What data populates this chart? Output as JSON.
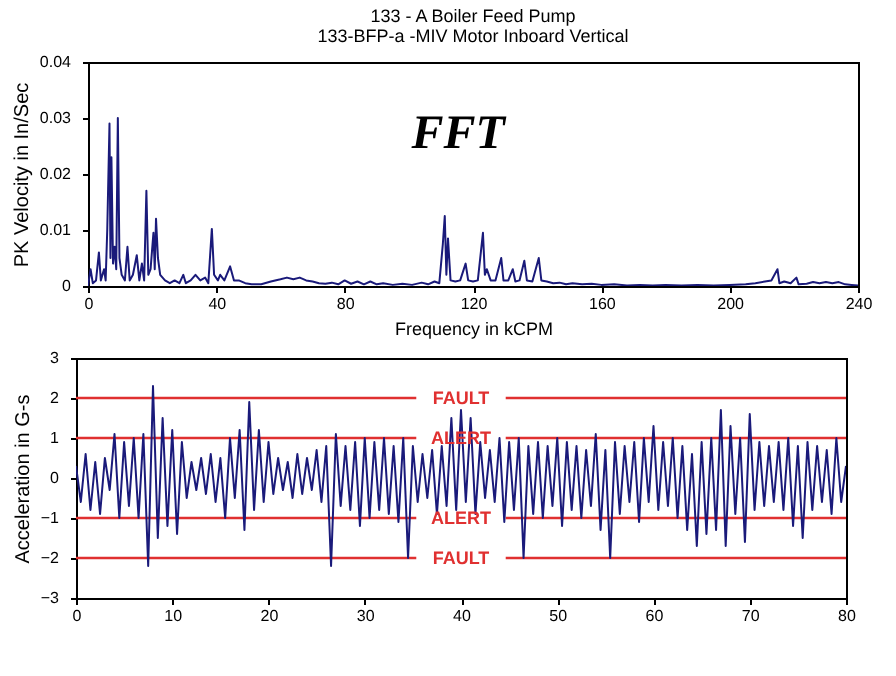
{
  "chart_data": [
    {
      "type": "line",
      "title": "133  - A Boiler Feed Pump",
      "subtitle": "133-BFP-a -MIV   Motor Inboard Vertical",
      "xlabel": "Frequency in kCPM",
      "ylabel": "PK Velocity in In/Sec",
      "annotations": [
        "FFT"
      ],
      "xlim": [
        0,
        240
      ],
      "xticks": [
        0,
        40,
        80,
        120,
        160,
        200,
        240
      ],
      "ylim": [
        0,
        0.04
      ],
      "yticks": [
        0,
        0.01,
        0.02,
        0.03,
        0.04
      ],
      "series": [
        {
          "color": "#1a1a7a",
          "x": [
            0,
            0.8,
            1.5,
            2.5,
            3.4,
            4,
            5,
            5.5,
            6,
            6.7,
            7,
            7.3,
            7.8,
            8.3,
            8.8,
            9.3,
            9.8,
            10.5,
            11.5,
            12.3,
            13,
            14,
            15.2,
            16,
            16.8,
            17.5,
            18.2,
            18.8,
            19.5,
            20.4,
            20.8,
            21.2,
            21.8,
            22.5,
            24,
            25.5,
            27,
            28.5,
            29.7,
            30.5,
            32,
            33.5,
            35,
            36.5,
            37.5,
            38.6,
            39.3,
            40.5,
            41.2,
            42.5,
            44.3,
            45.5,
            47,
            49,
            51,
            54,
            57,
            60,
            62,
            64,
            66,
            68,
            70,
            72,
            74,
            76,
            78,
            80,
            82,
            84,
            86,
            88,
            90,
            92,
            95,
            98,
            101,
            104,
            106,
            108,
            109.5,
            110.6,
            111.2,
            111.7,
            112.2,
            113,
            114.5,
            116,
            117.7,
            118.5,
            120,
            121.5,
            123.1,
            123.7,
            124.3,
            125.5,
            127,
            128.8,
            129.5,
            131,
            132.4,
            133.2,
            134.5,
            136,
            136.8,
            138.5,
            140.5,
            141.3,
            143,
            145,
            147,
            149,
            151,
            154,
            157,
            160,
            164,
            168,
            172,
            176,
            180,
            185,
            190,
            195,
            200,
            205,
            208,
            211,
            213,
            214.9,
            215.5,
            217,
            219,
            220.8,
            221.5,
            224,
            226,
            228,
            230,
            232,
            234,
            236,
            238,
            240
          ],
          "values": [
            0,
            0.003,
            0.0005,
            0.001,
            0.006,
            0.001,
            0.003,
            0.001,
            0.01,
            0.029,
            0.005,
            0.023,
            0.004,
            0.007,
            0.003,
            0.03,
            0.005,
            0.002,
            0.001,
            0.007,
            0.001,
            0.002,
            0.0055,
            0.001,
            0.004,
            0.001,
            0.017,
            0.002,
            0.003,
            0.0095,
            0.003,
            0.012,
            0.005,
            0.002,
            0.001,
            0.0005,
            0.001,
            0.0005,
            0.002,
            0.0005,
            0.001,
            0.002,
            0.001,
            0.0015,
            0.0005,
            0.0102,
            0.002,
            0.001,
            0.002,
            0.001,
            0.0035,
            0.001,
            0.001,
            0.0005,
            0.0003,
            0.0003,
            0.0008,
            0.0012,
            0.0015,
            0.0012,
            0.0015,
            0.001,
            0.0008,
            0.0005,
            0.0004,
            0.0006,
            0.0003,
            0.001,
            0.0004,
            0.0008,
            0.0003,
            0.0008,
            0.0003,
            0.0005,
            0.0002,
            0.0004,
            0.0002,
            0.0006,
            0.0003,
            0.0008,
            0.0005,
            0.0075,
            0.0125,
            0.002,
            0.0085,
            0.001,
            0.0008,
            0.001,
            0.004,
            0.001,
            0.0008,
            0.001,
            0.0095,
            0.002,
            0.003,
            0.001,
            0.001,
            0.005,
            0.001,
            0.001,
            0.003,
            0.0008,
            0.001,
            0.0045,
            0.001,
            0.0008,
            0.005,
            0.001,
            0.0008,
            0.0005,
            0.0006,
            0.0003,
            0.0005,
            0.0003,
            0.0004,
            0.0002,
            0.0003,
            0.0001,
            0.0002,
            0.0001,
            0.0002,
            0.0001,
            0.0002,
            0.0001,
            0.0002,
            0.0003,
            0.0005,
            0.0008,
            0.001,
            0.003,
            0.0005,
            0.0008,
            0.0005,
            0.0015,
            0.0003,
            0.0004,
            0.0007,
            0.0005,
            0.0007,
            0.0005,
            0.0007,
            0.0003,
            0.0002,
            0.0001
          ]
        }
      ]
    },
    {
      "type": "line",
      "ylabel": "Acceleration in G-s",
      "xlim": [
        0,
        80
      ],
      "xticks": [
        0,
        10,
        20,
        30,
        40,
        50,
        60,
        70,
        80
      ],
      "ylim": [
        -3,
        3
      ],
      "yticks": [
        -3,
        -2,
        -1,
        0,
        1,
        2,
        3
      ],
      "ref_lines": [
        {
          "axis": "y",
          "value": 2,
          "label": "FAULT",
          "color": "#e03030"
        },
        {
          "axis": "y",
          "value": 1,
          "label": "ALERT",
          "color": "#e03030"
        },
        {
          "axis": "y",
          "value": -1,
          "label": "ALERT",
          "color": "#e03030"
        },
        {
          "axis": "y",
          "value": -2,
          "label": "FAULT",
          "color": "#e03030"
        }
      ],
      "series": [
        {
          "color": "#1a1a7a",
          "x": [
            0,
            0.5,
            1,
            1.5,
            2,
            2.5,
            3,
            3.5,
            4,
            4.5,
            5,
            5.5,
            6,
            6.5,
            7,
            7.5,
            8,
            8.5,
            9,
            9.5,
            10,
            10.5,
            11,
            11.5,
            12,
            12.5,
            13,
            13.5,
            14,
            14.5,
            15,
            15.5,
            16,
            16.5,
            17,
            17.5,
            18,
            18.5,
            19,
            19.5,
            20,
            20.5,
            21,
            21.5,
            22,
            22.5,
            23,
            23.5,
            24,
            24.5,
            25,
            25.5,
            26,
            26.5,
            27,
            27.5,
            28,
            28.5,
            29,
            29.5,
            30,
            30.5,
            31,
            31.5,
            32,
            32.5,
            33,
            33.5,
            34,
            34.5,
            35,
            35.5,
            36,
            36.5,
            37,
            37.5,
            38,
            38.5,
            39,
            39.5,
            40,
            40.5,
            41,
            41.5,
            42,
            42.5,
            43,
            43.5,
            44,
            44.5,
            45,
            45.5,
            46,
            46.5,
            47,
            47.5,
            48,
            48.5,
            49,
            49.5,
            50,
            50.5,
            51,
            51.5,
            52,
            52.5,
            53,
            53.5,
            54,
            54.5,
            55,
            55.5,
            56,
            56.5,
            57,
            57.5,
            58,
            58.5,
            59,
            59.5,
            60,
            60.5,
            61,
            61.5,
            62,
            62.5,
            63,
            63.5,
            64,
            64.5,
            65,
            65.5,
            66,
            66.5,
            67,
            67.5,
            68,
            68.5,
            69,
            69.5,
            70,
            70.5,
            71,
            71.5,
            72,
            72.5,
            73,
            73.5,
            74,
            74.5,
            75,
            75.5,
            76,
            76.5,
            77,
            77.5,
            78,
            78.5,
            79,
            79.5,
            80
          ],
          "values": [
            0.3,
            -0.6,
            0.6,
            -0.8,
            0.4,
            -0.9,
            0.5,
            -0.3,
            1.1,
            -1.0,
            0.9,
            -0.7,
            1.0,
            -1.0,
            1.1,
            -2.2,
            2.3,
            -1.5,
            1.5,
            -1.2,
            1.2,
            -1.4,
            0.9,
            -0.5,
            0.4,
            -0.3,
            0.5,
            -0.4,
            0.6,
            -0.6,
            0.5,
            -1.0,
            1.0,
            -0.5,
            1.2,
            -1.3,
            1.9,
            -0.8,
            1.2,
            -0.6,
            0.9,
            -0.4,
            0.5,
            -0.3,
            0.4,
            -0.5,
            0.6,
            -0.4,
            0.5,
            -0.3,
            0.7,
            -0.6,
            0.8,
            -2.2,
            1.1,
            -0.7,
            0.8,
            -0.8,
            0.9,
            -1.2,
            1.0,
            -1.0,
            0.9,
            -0.8,
            1.0,
            -0.9,
            0.8,
            -1.1,
            1.0,
            -2.0,
            0.8,
            -0.6,
            0.6,
            -0.5,
            0.7,
            -0.9,
            0.8,
            -0.7,
            1.5,
            -0.8,
            1.7,
            -0.6,
            1.5,
            -0.9,
            0.9,
            -0.5,
            0.7,
            -0.6,
            1.0,
            -1.1,
            0.9,
            -0.8,
            1.0,
            -2.0,
            0.8,
            -0.9,
            0.9,
            -1.0,
            0.8,
            -0.7,
            1.0,
            -1.2,
            0.9,
            -0.8,
            0.8,
            -1.0,
            0.7,
            -0.7,
            1.1,
            -1.3,
            0.7,
            -2.0,
            0.9,
            -0.9,
            0.8,
            -0.6,
            0.9,
            -1.1,
            1.0,
            -0.6,
            1.3,
            -0.8,
            0.9,
            -0.7,
            1.0,
            -1.0,
            0.8,
            -1.3,
            0.6,
            -1.7,
            0.9,
            -1.4,
            1.0,
            -1.3,
            1.7,
            -1.7,
            1.3,
            -0.9,
            1.0,
            -1.6,
            1.6,
            -0.8,
            0.9,
            -0.7,
            0.8,
            -0.6,
            0.9,
            -0.8,
            1.0,
            -1.2,
            0.8,
            -1.5,
            0.9,
            -0.8,
            0.8,
            -0.6,
            0.7,
            -0.9,
            1.0,
            -0.6,
            0.3
          ]
        }
      ]
    }
  ]
}
